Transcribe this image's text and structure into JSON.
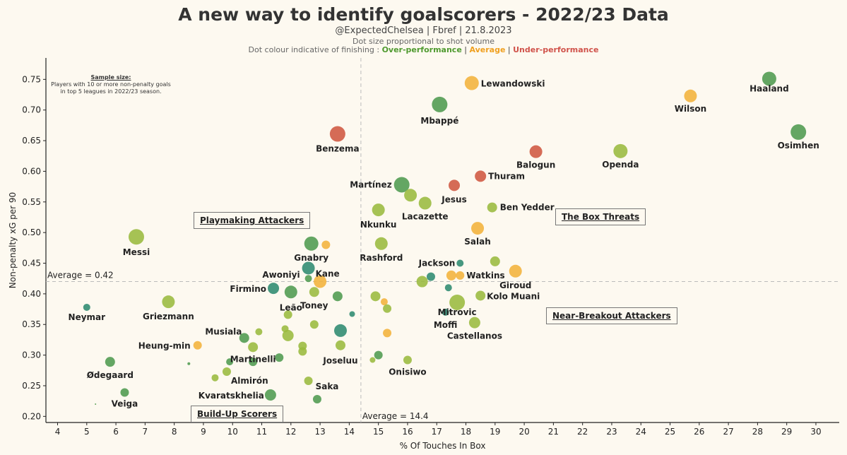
{
  "header": {
    "title": "A new way to identify goalscorers - 2022/23 Data",
    "subtitle": "@ExpectedChelsea | Fbref | 21.8.2023",
    "note_size": "Dot size proportional to shot volume",
    "note_colour_prefix": "Dot colour indicative of finishing : ",
    "legend_over": "Over-performance",
    "legend_sep": " | ",
    "legend_avg": "Average",
    "legend_under": "Under-performance"
  },
  "sample_box": {
    "heading": "Sample size:",
    "line1": "Players with 10 or more non-penalty goals",
    "line2": "in top 5 leagues in 2022/23 season."
  },
  "zones": {
    "playmaking": "Playmaking Attackers",
    "box_threats": "The Box Threats",
    "near_breakout": "Near-Breakout Attackers",
    "build_up": "Build-Up Scorers"
  },
  "chart_data": {
    "type": "scatter",
    "xlabel": "% Of Touches In Box",
    "ylabel": "Non-penalty xG per 90",
    "xlim": [
      3.6,
      30.8
    ],
    "ylim": [
      0.19,
      0.785
    ],
    "xticks": [
      4,
      5,
      6,
      7,
      8,
      9,
      10,
      11,
      12,
      13,
      14,
      15,
      16,
      17,
      18,
      19,
      20,
      21,
      22,
      23,
      24,
      25,
      26,
      27,
      28,
      29,
      30
    ],
    "yticks": [
      0.2,
      0.25,
      0.3,
      0.35,
      0.4,
      0.45,
      0.5,
      0.55,
      0.6,
      0.65,
      0.7,
      0.75
    ],
    "avg_x": 14.4,
    "avg_y": 0.42,
    "avg_x_label": "Average = 14.4",
    "avg_y_label": "Average = 0.42",
    "colors": {
      "green": "#4f9a4f",
      "lightgreen": "#9ab93d",
      "teal": "#2e8a70",
      "orange": "#f3b23a",
      "red": "#cf5740"
    },
    "points": [
      {
        "x": 28.4,
        "y": 0.751,
        "r": 10,
        "c": "green",
        "label": "Haaland"
      },
      {
        "x": 18.2,
        "y": 0.744,
        "r": 10,
        "c": "orange",
        "label": "Lewandowski"
      },
      {
        "x": 25.7,
        "y": 0.723,
        "r": 9,
        "c": "orange",
        "label": "Wilson"
      },
      {
        "x": 17.1,
        "y": 0.709,
        "r": 11,
        "c": "green",
        "label": "Mbappé"
      },
      {
        "x": 29.4,
        "y": 0.664,
        "r": 11,
        "c": "green",
        "label": "Osimhen"
      },
      {
        "x": 13.6,
        "y": 0.661,
        "r": 11,
        "c": "red",
        "label": "Benzema"
      },
      {
        "x": 23.3,
        "y": 0.633,
        "r": 10,
        "c": "lightgreen",
        "label": "Openda"
      },
      {
        "x": 20.4,
        "y": 0.632,
        "r": 9,
        "c": "red",
        "label": "Balogun"
      },
      {
        "x": 18.5,
        "y": 0.592,
        "r": 8,
        "c": "red",
        "label": "Thuram"
      },
      {
        "x": 15.8,
        "y": 0.578,
        "r": 11,
        "c": "green",
        "label": "Martínez"
      },
      {
        "x": 17.6,
        "y": 0.577,
        "r": 8,
        "c": "red",
        "label": "Jesus"
      },
      {
        "x": 16.1,
        "y": 0.561,
        "r": 9,
        "c": "lightgreen",
        "label": ""
      },
      {
        "x": 16.6,
        "y": 0.548,
        "r": 9,
        "c": "lightgreen",
        "label": "Lacazette"
      },
      {
        "x": 18.9,
        "y": 0.541,
        "r": 7,
        "c": "lightgreen",
        "label": "Ben Yedder"
      },
      {
        "x": 15.0,
        "y": 0.537,
        "r": 9,
        "c": "lightgreen",
        "label": "Nkunku"
      },
      {
        "x": 18.4,
        "y": 0.507,
        "r": 9,
        "c": "orange",
        "label": "Salah"
      },
      {
        "x": 6.7,
        "y": 0.493,
        "r": 11,
        "c": "lightgreen",
        "label": "Messi"
      },
      {
        "x": 12.7,
        "y": 0.482,
        "r": 10,
        "c": "green",
        "label": "Gnabry"
      },
      {
        "x": 13.2,
        "y": 0.48,
        "r": 6,
        "c": "orange",
        "label": ""
      },
      {
        "x": 15.1,
        "y": 0.482,
        "r": 9,
        "c": "lightgreen",
        "label": "Rashford"
      },
      {
        "x": 19.0,
        "y": 0.453,
        "r": 7,
        "c": "lightgreen",
        "label": ""
      },
      {
        "x": 17.8,
        "y": 0.45,
        "r": 5,
        "c": "teal",
        "label": "Jackson"
      },
      {
        "x": 12.6,
        "y": 0.442,
        "r": 9,
        "c": "teal",
        "label": "Kane"
      },
      {
        "x": 19.7,
        "y": 0.437,
        "r": 9,
        "c": "orange",
        "label": "Giroud"
      },
      {
        "x": 17.5,
        "y": 0.43,
        "r": 7,
        "c": "orange",
        "label": ""
      },
      {
        "x": 17.8,
        "y": 0.43,
        "r": 6,
        "c": "orange",
        "label": "Watkins"
      },
      {
        "x": 16.8,
        "y": 0.428,
        "r": 6,
        "c": "teal",
        "label": ""
      },
      {
        "x": 12.6,
        "y": 0.425,
        "r": 5,
        "c": "green",
        "label": "Awoniyi"
      },
      {
        "x": 16.5,
        "y": 0.42,
        "r": 8,
        "c": "lightgreen",
        "label": ""
      },
      {
        "x": 13.0,
        "y": 0.42,
        "r": 9,
        "c": "orange",
        "label": ""
      },
      {
        "x": 11.4,
        "y": 0.409,
        "r": 8,
        "c": "teal",
        "label": "Firmino"
      },
      {
        "x": 12.0,
        "y": 0.403,
        "r": 9,
        "c": "green",
        "label": "Leão"
      },
      {
        "x": 12.8,
        "y": 0.403,
        "r": 7,
        "c": "lightgreen",
        "label": "Toney"
      },
      {
        "x": 17.4,
        "y": 0.41,
        "r": 5,
        "c": "teal",
        "label": ""
      },
      {
        "x": 13.6,
        "y": 0.396,
        "r": 7,
        "c": "green",
        "label": ""
      },
      {
        "x": 14.9,
        "y": 0.396,
        "r": 7,
        "c": "lightgreen",
        "label": ""
      },
      {
        "x": 18.5,
        "y": 0.397,
        "r": 7,
        "c": "lightgreen",
        "label": "Kolo Muani"
      },
      {
        "x": 17.7,
        "y": 0.386,
        "r": 11,
        "c": "lightgreen",
        "label": "Mitrovic"
      },
      {
        "x": 15.2,
        "y": 0.387,
        "r": 5,
        "c": "orange",
        "label": ""
      },
      {
        "x": 7.8,
        "y": 0.387,
        "r": 9,
        "c": "lightgreen",
        "label": "Griezmann"
      },
      {
        "x": 5.0,
        "y": 0.378,
        "r": 5,
        "c": "teal",
        "label": "Neymar"
      },
      {
        "x": 15.3,
        "y": 0.376,
        "r": 6,
        "c": "lightgreen",
        "label": ""
      },
      {
        "x": 17.3,
        "y": 0.37,
        "r": 5,
        "c": "teal",
        "label": "Moffi"
      },
      {
        "x": 14.1,
        "y": 0.367,
        "r": 4,
        "c": "teal",
        "label": ""
      },
      {
        "x": 11.9,
        "y": 0.366,
        "r": 6,
        "c": "lightgreen",
        "label": ""
      },
      {
        "x": 18.3,
        "y": 0.353,
        "r": 8,
        "c": "lightgreen",
        "label": "Castellanos"
      },
      {
        "x": 12.8,
        "y": 0.35,
        "r": 6,
        "c": "lightgreen",
        "label": ""
      },
      {
        "x": 11.8,
        "y": 0.343,
        "r": 5,
        "c": "lightgreen",
        "label": ""
      },
      {
        "x": 13.7,
        "y": 0.34,
        "r": 9,
        "c": "teal",
        "label": ""
      },
      {
        "x": 10.9,
        "y": 0.338,
        "r": 5,
        "c": "lightgreen",
        "label": "Musiala"
      },
      {
        "x": 15.3,
        "y": 0.336,
        "r": 6,
        "c": "orange",
        "label": ""
      },
      {
        "x": 11.9,
        "y": 0.332,
        "r": 8,
        "c": "lightgreen",
        "label": ""
      },
      {
        "x": 10.4,
        "y": 0.328,
        "r": 7,
        "c": "green",
        "label": ""
      },
      {
        "x": 13.7,
        "y": 0.316,
        "r": 7,
        "c": "lightgreen",
        "label": "Joseluu"
      },
      {
        "x": 12.4,
        "y": 0.315,
        "r": 6,
        "c": "lightgreen",
        "label": ""
      },
      {
        "x": 8.8,
        "y": 0.316,
        "r": 6,
        "c": "orange",
        "label": "Heung-min"
      },
      {
        "x": 10.7,
        "y": 0.313,
        "r": 7,
        "c": "lightgreen",
        "label": "Martinelli"
      },
      {
        "x": 12.4,
        "y": 0.306,
        "r": 6,
        "c": "lightgreen",
        "label": ""
      },
      {
        "x": 15.0,
        "y": 0.3,
        "r": 6,
        "c": "green",
        "label": ""
      },
      {
        "x": 11.6,
        "y": 0.296,
        "r": 6,
        "c": "green",
        "label": ""
      },
      {
        "x": 14.8,
        "y": 0.292,
        "r": 4,
        "c": "lightgreen",
        "label": ""
      },
      {
        "x": 16.0,
        "y": 0.292,
        "r": 6,
        "c": "lightgreen",
        "label": "Onisiwo"
      },
      {
        "x": 5.8,
        "y": 0.289,
        "r": 7,
        "c": "green",
        "label": "Ødegaard"
      },
      {
        "x": 9.9,
        "y": 0.289,
        "r": 5,
        "c": "green",
        "label": ""
      },
      {
        "x": 10.7,
        "y": 0.289,
        "r": 6,
        "c": "green",
        "label": ""
      },
      {
        "x": 8.5,
        "y": 0.286,
        "r": 2,
        "c": "green",
        "label": ""
      },
      {
        "x": 9.8,
        "y": 0.273,
        "r": 6,
        "c": "lightgreen",
        "label": "Almirón"
      },
      {
        "x": 9.4,
        "y": 0.263,
        "r": 5,
        "c": "lightgreen",
        "label": ""
      },
      {
        "x": 12.6,
        "y": 0.258,
        "r": 6,
        "c": "lightgreen",
        "label": "Saka"
      },
      {
        "x": 6.3,
        "y": 0.239,
        "r": 6,
        "c": "green",
        "label": "Veiga"
      },
      {
        "x": 11.3,
        "y": 0.235,
        "r": 8,
        "c": "green",
        "label": "Kvaratskhelia"
      },
      {
        "x": 12.9,
        "y": 0.228,
        "r": 6,
        "c": "green",
        "label": ""
      },
      {
        "x": 5.3,
        "y": 0.22,
        "r": 1,
        "c": "green",
        "label": ""
      }
    ]
  }
}
